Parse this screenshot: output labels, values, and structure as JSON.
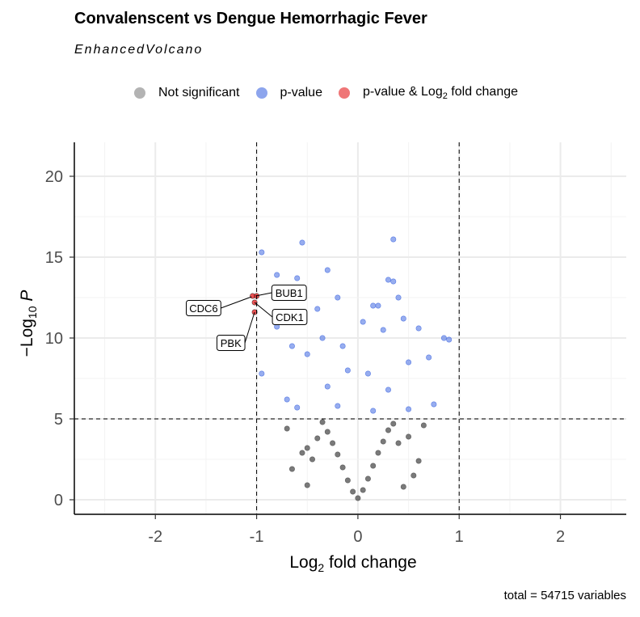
{
  "header": {
    "title": "Convalenscent vs Dengue Hemorrhagic Fever",
    "subtitle": "EnhancedVolcano"
  },
  "legend": {
    "items": [
      {
        "label": "Not significant",
        "color": "#808080"
      },
      {
        "label": "p-value",
        "color": "#4169E1"
      },
      {
        "label": "p-value & Log2 fold change",
        "label_main": "p-value &  Log",
        "label_sub": "2",
        "label_tail": " fold change",
        "color": "#E41A1C"
      }
    ]
  },
  "caption": "total = 54715 variables",
  "chart_data": {
    "type": "scatter",
    "title": "Convalenscent vs Dengue Hemorrhagic Fever",
    "subtitle": "EnhancedVolcano",
    "xlabel": "Log2 fold change",
    "ylabel": "-Log10 P",
    "xlim": [
      -2.8,
      2.65
    ],
    "ylim": [
      -0.9,
      22.1
    ],
    "x_ticks": [
      -2,
      -1,
      0,
      1,
      2
    ],
    "y_ticks": [
      0,
      5,
      10,
      15,
      20
    ],
    "x_tick_labels": [
      "-2",
      "-1",
      "0",
      "1",
      "2"
    ],
    "y_tick_labels": [
      "0",
      "5",
      "10",
      "15",
      "20"
    ],
    "grid": true,
    "legend_position": "top",
    "cutoffs": {
      "fold_change": [
        -1,
        1
      ],
      "p": 5
    },
    "total_variables": 54715,
    "series": [
      {
        "name": "Not significant",
        "color": "#4d4d4d",
        "points": [
          [
            0,
            0.1
          ],
          [
            -0.05,
            0.5
          ],
          [
            0.05,
            0.6
          ],
          [
            -0.1,
            1.2
          ],
          [
            0.1,
            1.3
          ],
          [
            -0.15,
            2.0
          ],
          [
            0.15,
            2.1
          ],
          [
            -0.2,
            2.8
          ],
          [
            0.2,
            2.9
          ],
          [
            -0.25,
            3.5
          ],
          [
            0.25,
            3.6
          ],
          [
            -0.3,
            4.2
          ],
          [
            0.3,
            4.3
          ],
          [
            -0.35,
            4.8
          ],
          [
            0.35,
            4.7
          ],
          [
            -0.4,
            3.8
          ],
          [
            0.4,
            3.5
          ],
          [
            -0.45,
            2.5
          ],
          [
            0.5,
            3.9
          ],
          [
            -0.5,
            3.2
          ],
          [
            -0.55,
            2.9
          ],
          [
            0.6,
            2.4
          ],
          [
            -0.65,
            1.9
          ],
          [
            0.55,
            1.5
          ],
          [
            -0.5,
            0.9
          ],
          [
            0.45,
            0.8
          ],
          [
            -0.7,
            4.4
          ],
          [
            0.65,
            4.6
          ]
        ]
      },
      {
        "name": "p-value",
        "color": "#4169E1",
        "points": [
          [
            -0.95,
            15.3
          ],
          [
            -0.55,
            15.9
          ],
          [
            0.35,
            16.1
          ],
          [
            -0.3,
            14.2
          ],
          [
            0.3,
            13.6
          ],
          [
            0.35,
            13.5
          ],
          [
            -0.8,
            13.9
          ],
          [
            -0.6,
            13.7
          ],
          [
            -0.2,
            12.5
          ],
          [
            0.2,
            12.0
          ],
          [
            -0.4,
            11.8
          ],
          [
            0.45,
            11.2
          ],
          [
            0.6,
            10.6
          ],
          [
            0.9,
            9.9
          ],
          [
            0.85,
            10.0
          ],
          [
            -0.8,
            10.7
          ],
          [
            -0.65,
            9.5
          ],
          [
            0.7,
            8.8
          ],
          [
            -0.95,
            7.8
          ],
          [
            -0.5,
            9.0
          ],
          [
            0.5,
            8.5
          ],
          [
            -0.1,
            8.0
          ],
          [
            0.1,
            7.8
          ],
          [
            -0.3,
            7.0
          ],
          [
            0.3,
            6.8
          ],
          [
            -0.7,
            6.2
          ],
          [
            0.75,
            5.9
          ],
          [
            -0.6,
            5.7
          ],
          [
            0.5,
            5.6
          ],
          [
            -0.2,
            5.8
          ],
          [
            0.15,
            5.5
          ],
          [
            -0.15,
            9.5
          ],
          [
            0.25,
            10.5
          ],
          [
            -0.35,
            10.0
          ],
          [
            0.15,
            12.0
          ],
          [
            0.05,
            11.0
          ],
          [
            0.4,
            12.5
          ]
        ]
      },
      {
        "name": "p-value & Log2 fold change",
        "color": "#E41A1C",
        "points": [
          [
            -1.04,
            12.6
          ],
          [
            -1.0,
            12.6
          ],
          [
            -1.02,
            12.2
          ],
          [
            -1.02,
            11.6
          ]
        ]
      }
    ],
    "labeled_genes": [
      {
        "gene": "BUB1",
        "x": -1.01,
        "y": 12.6
      },
      {
        "gene": "CDC6",
        "x": -1.05,
        "y": 12.55
      },
      {
        "gene": "CDK1",
        "x": -1.02,
        "y": 12.2
      },
      {
        "gene": "PBK",
        "x": -1.02,
        "y": 11.6
      }
    ]
  }
}
